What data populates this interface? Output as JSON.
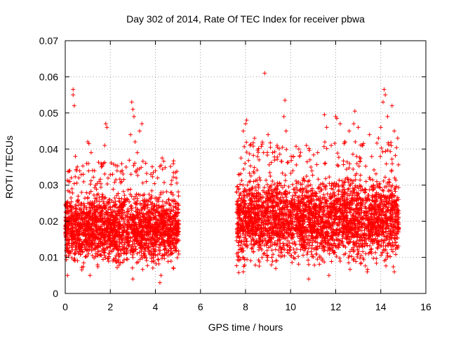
{
  "chart_data": {
    "type": "scatter",
    "title": "Day 302 of 2014, Rate Of TEC Index for receiver pbwa",
    "xlabel": "GPS time / hours",
    "ylabel": "ROTI / TECUs",
    "xlim": [
      0,
      16
    ],
    "ylim": [
      0,
      0.07
    ],
    "xticks": [
      0,
      2,
      4,
      6,
      8,
      10,
      12,
      14,
      16
    ],
    "xtick_labels": [
      "0",
      "2",
      "4",
      "6",
      "8",
      "10",
      "12",
      "14",
      "16"
    ],
    "yticks": [
      0,
      0.01,
      0.02,
      0.03,
      0.04,
      0.05,
      0.06,
      0.07
    ],
    "ytick_labels": [
      "0",
      "0.01",
      "0.02",
      "0.03",
      "0.04",
      "0.05",
      "0.06",
      "0.07"
    ],
    "grid": true,
    "marker": "+",
    "series": [
      {
        "name": "ROTI",
        "color": "#ff0000",
        "segments": [
          {
            "x_start": 0.0,
            "x_end": 5.05,
            "y_typical": [
              0.005,
              0.03
            ]
          },
          {
            "x_start": 7.6,
            "x_end": 14.8,
            "y_typical": [
              0.005,
              0.035
            ]
          }
        ],
        "points": [
          {
            "x": 0.05,
            "y": 0.012
          },
          {
            "x": 0.1,
            "y": 0.025
          },
          {
            "x": 0.15,
            "y": 0.031
          },
          {
            "x": 0.2,
            "y": 0.034
          },
          {
            "x": 0.3,
            "y": 0.029
          },
          {
            "x": 0.35,
            "y": 0.055
          },
          {
            "x": 0.35,
            "y": 0.0565
          },
          {
            "x": 0.4,
            "y": 0.052
          },
          {
            "x": 0.45,
            "y": 0.038
          },
          {
            "x": 0.5,
            "y": 0.034
          },
          {
            "x": 0.6,
            "y": 0.032
          },
          {
            "x": 0.8,
            "y": 0.033
          },
          {
            "x": 0.95,
            "y": 0.036
          },
          {
            "x": 1.0,
            "y": 0.042
          },
          {
            "x": 1.05,
            "y": 0.0415
          },
          {
            "x": 1.15,
            "y": 0.039
          },
          {
            "x": 1.3,
            "y": 0.034
          },
          {
            "x": 1.5,
            "y": 0.031
          },
          {
            "x": 1.7,
            "y": 0.036
          },
          {
            "x": 1.75,
            "y": 0.041
          },
          {
            "x": 1.8,
            "y": 0.047
          },
          {
            "x": 1.85,
            "y": 0.046
          },
          {
            "x": 2.1,
            "y": 0.033
          },
          {
            "x": 2.3,
            "y": 0.034
          },
          {
            "x": 2.5,
            "y": 0.031
          },
          {
            "x": 2.7,
            "y": 0.035
          },
          {
            "x": 2.9,
            "y": 0.044
          },
          {
            "x": 2.95,
            "y": 0.053
          },
          {
            "x": 3.0,
            "y": 0.051
          },
          {
            "x": 3.05,
            "y": 0.049
          },
          {
            "x": 3.1,
            "y": 0.042
          },
          {
            "x": 3.2,
            "y": 0.039
          },
          {
            "x": 3.3,
            "y": 0.045
          },
          {
            "x": 3.4,
            "y": 0.047
          },
          {
            "x": 3.6,
            "y": 0.031
          },
          {
            "x": 3.8,
            "y": 0.033
          },
          {
            "x": 4.0,
            "y": 0.034
          },
          {
            "x": 4.1,
            "y": 0.032
          },
          {
            "x": 4.25,
            "y": 0.0355
          },
          {
            "x": 4.3,
            "y": 0.0375
          },
          {
            "x": 4.6,
            "y": 0.026
          },
          {
            "x": 4.95,
            "y": 0.025
          },
          {
            "x": 4.2,
            "y": 0.003
          },
          {
            "x": 4.25,
            "y": 0.005
          },
          {
            "x": 3.0,
            "y": 0.004
          },
          {
            "x": 1.1,
            "y": 0.005
          },
          {
            "x": 0.1,
            "y": 0.005
          },
          {
            "x": 7.7,
            "y": 0.033
          },
          {
            "x": 7.8,
            "y": 0.0375
          },
          {
            "x": 7.9,
            "y": 0.045
          },
          {
            "x": 8.0,
            "y": 0.047
          },
          {
            "x": 8.05,
            "y": 0.048
          },
          {
            "x": 8.2,
            "y": 0.041
          },
          {
            "x": 8.4,
            "y": 0.043
          },
          {
            "x": 8.6,
            "y": 0.037
          },
          {
            "x": 8.8,
            "y": 0.039
          },
          {
            "x": 8.85,
            "y": 0.061
          },
          {
            "x": 9.0,
            "y": 0.044
          },
          {
            "x": 9.2,
            "y": 0.039
          },
          {
            "x": 9.4,
            "y": 0.041
          },
          {
            "x": 9.7,
            "y": 0.049
          },
          {
            "x": 9.75,
            "y": 0.0535
          },
          {
            "x": 9.8,
            "y": 0.045
          },
          {
            "x": 10.1,
            "y": 0.034
          },
          {
            "x": 10.4,
            "y": 0.038
          },
          {
            "x": 10.7,
            "y": 0.041
          },
          {
            "x": 10.9,
            "y": 0.035
          },
          {
            "x": 11.2,
            "y": 0.039
          },
          {
            "x": 11.5,
            "y": 0.0495
          },
          {
            "x": 11.6,
            "y": 0.046
          },
          {
            "x": 11.8,
            "y": 0.041
          },
          {
            "x": 12.0,
            "y": 0.049
          },
          {
            "x": 12.05,
            "y": 0.0485
          },
          {
            "x": 12.2,
            "y": 0.047
          },
          {
            "x": 12.4,
            "y": 0.042
          },
          {
            "x": 12.6,
            "y": 0.045
          },
          {
            "x": 12.8,
            "y": 0.047
          },
          {
            "x": 12.85,
            "y": 0.0505
          },
          {
            "x": 13.0,
            "y": 0.046
          },
          {
            "x": 13.2,
            "y": 0.041
          },
          {
            "x": 13.5,
            "y": 0.044
          },
          {
            "x": 13.9,
            "y": 0.043
          },
          {
            "x": 14.0,
            "y": 0.046
          },
          {
            "x": 14.1,
            "y": 0.053
          },
          {
            "x": 14.15,
            "y": 0.0565
          },
          {
            "x": 14.2,
            "y": 0.055
          },
          {
            "x": 14.3,
            "y": 0.049
          },
          {
            "x": 14.5,
            "y": 0.052
          },
          {
            "x": 14.6,
            "y": 0.045
          },
          {
            "x": 14.75,
            "y": 0.043
          },
          {
            "x": 10.8,
            "y": 0.004
          },
          {
            "x": 11.7,
            "y": 0.005
          },
          {
            "x": 13.4,
            "y": 0.006
          },
          {
            "x": 7.9,
            "y": 0.006
          },
          {
            "x": 14.6,
            "y": 0.006
          }
        ]
      }
    ]
  }
}
